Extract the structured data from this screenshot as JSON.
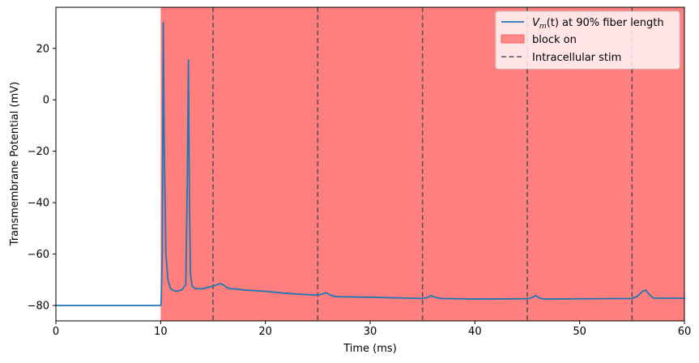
{
  "chart_data": {
    "type": "line",
    "xlabel": "Time (ms)",
    "ylabel": "Transmembrane Potential (mV)",
    "xlim": [
      0,
      60
    ],
    "ylim": [
      -86,
      36
    ],
    "xticks": [
      0,
      10,
      20,
      30,
      40,
      50,
      60
    ],
    "yticks": [
      -80,
      -60,
      -40,
      -20,
      0,
      20
    ],
    "xtick_labels": [
      "0",
      "10",
      "20",
      "30",
      "40",
      "50",
      "60"
    ],
    "ytick_labels": [
      "−80",
      "−60",
      "−40",
      "−20",
      "0",
      "20"
    ],
    "grid": false,
    "legend_position": "top-right",
    "block_on": {
      "start": 10,
      "end": 60,
      "color": "#ff7f7f",
      "label": "block on"
    },
    "stim_lines": {
      "x": [
        15,
        25,
        35,
        45,
        55
      ],
      "label": "Intracellular stim",
      "color": "#555555"
    },
    "series": [
      {
        "label_prefix": "V",
        "label_sub": "m",
        "label_suffix": "(t) at 90% fiber length",
        "color": "#1f77b4",
        "x": [
          0,
          10,
          10.05,
          10.15,
          10.25,
          10.35,
          10.5,
          10.7,
          10.9,
          11.1,
          11.5,
          12.0,
          12.4,
          12.55,
          12.65,
          12.75,
          12.85,
          13.0,
          13.3,
          13.6,
          14.0,
          14.5,
          15.0,
          15.3,
          15.7,
          16.0,
          16.3,
          16.6,
          17.0,
          18.0,
          20.0,
          22.0,
          24.0,
          25.0,
          25.4,
          25.8,
          26.2,
          26.6,
          27.0,
          30.0,
          35.0,
          35.4,
          35.8,
          36.2,
          36.6,
          37.0,
          40.0,
          45.0,
          45.4,
          45.8,
          46.2,
          46.6,
          47.0,
          50.0,
          55.0,
          55.5,
          56.0,
          56.3,
          56.6,
          57.0,
          58.0,
          60.0
        ],
        "y": [
          -80,
          -80,
          -79,
          -60,
          30,
          -20,
          -60,
          -70,
          -73,
          -74,
          -74.5,
          -74,
          -72,
          -30,
          15.5,
          -40,
          -68,
          -72.5,
          -73.5,
          -73.5,
          -73.5,
          -73,
          -72.5,
          -72,
          -71.5,
          -72,
          -73,
          -73.5,
          -73.5,
          -74,
          -74.5,
          -75.3,
          -75.8,
          -76,
          -75.6,
          -75,
          -76,
          -76.5,
          -76.6,
          -76.8,
          -77.3,
          -77,
          -76.2,
          -76.8,
          -77.2,
          -77.3,
          -77.5,
          -77.4,
          -77,
          -76.2,
          -77.2,
          -77.5,
          -77.5,
          -77.4,
          -77.3,
          -76.5,
          -74.5,
          -74,
          -75.5,
          -77.1,
          -77.2,
          -77.2
        ]
      }
    ]
  }
}
